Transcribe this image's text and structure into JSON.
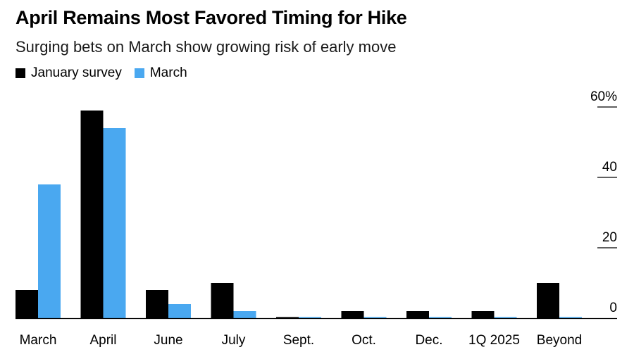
{
  "chart_data": {
    "type": "bar",
    "title": "April Remains Most Favored Timing for Hike",
    "subtitle": "Surging bets on March show growing risk of early move",
    "categories": [
      "March",
      "April",
      "June",
      "July",
      "Sept.",
      "Oct.",
      "Dec.",
      "1Q 2025",
      "Beyond"
    ],
    "series": [
      {
        "name": "January survey",
        "color": "#000000",
        "values": [
          8,
          59,
          8,
          10,
          0,
          2,
          2,
          2,
          10
        ]
      },
      {
        "name": "March",
        "color": "#4aa8f0",
        "values": [
          38,
          54,
          4,
          2,
          0,
          0,
          0,
          0,
          0
        ]
      }
    ],
    "yticks": [
      "0",
      "20",
      "40",
      "60%"
    ],
    "ylim": [
      0,
      60
    ],
    "legend_position": "top-left",
    "y_axis_side": "right",
    "grid": false
  }
}
